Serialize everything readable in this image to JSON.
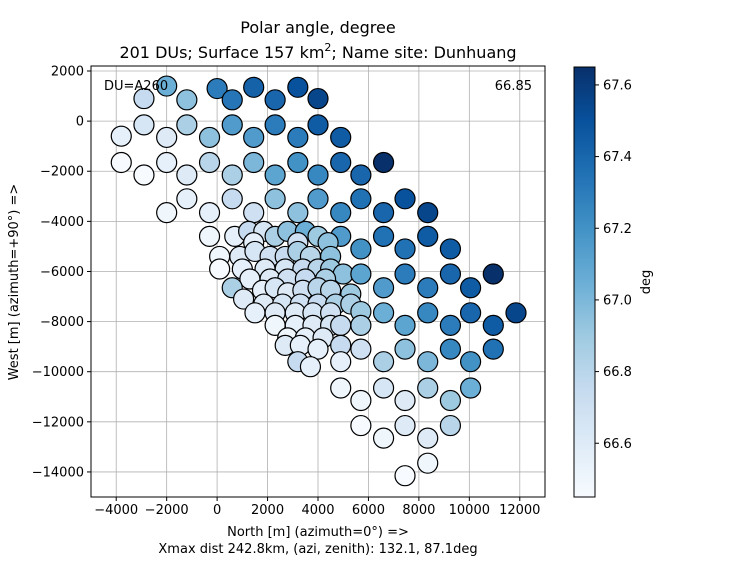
{
  "chart_data": {
    "type": "scatter",
    "title_line1": "Polar angle, degree",
    "title_line2_prefix": "201 DUs; Surface 157 km",
    "title_line2_sup": "2",
    "title_line2_suffix": "; Name site: Dunhuang",
    "xlabel": "North [m]  (azimuth=0°) =>",
    "xlabel2": "Xmax dist 242.8km, (azi, zenith): 132.1, 87.1deg",
    "ylabel": "West [m]  (azimuth=+90°) =>",
    "xlim": [
      -5000,
      13000
    ],
    "ylim": [
      -15000,
      2200
    ],
    "x_ticks": [
      -4000,
      -2000,
      0,
      2000,
      4000,
      6000,
      8000,
      10000,
      12000
    ],
    "x_tick_labels": [
      "−4000",
      "−2000",
      "0",
      "2000",
      "4000",
      "6000",
      "8000",
      "10000",
      "12000"
    ],
    "y_ticks": [
      2000,
      0,
      -2000,
      -4000,
      -6000,
      -8000,
      -10000,
      -12000,
      -14000
    ],
    "y_tick_labels": [
      "2000",
      "0",
      "−2000",
      "−4000",
      "−6000",
      "−8000",
      "−10000",
      "−12000",
      "−14000"
    ],
    "grid": true,
    "annotation_left": "DU=A260",
    "annotation_right": "66.85",
    "colorbar": {
      "label": "deg",
      "min": 66.45,
      "max": 67.65,
      "ticks": [
        66.6,
        66.8,
        67.0,
        67.2,
        67.4,
        67.6
      ],
      "tick_labels": [
        "66.6",
        "66.8",
        "67.0",
        "67.2",
        "67.4",
        "67.6"
      ],
      "colormap": "Blues",
      "stops": [
        "#f7fbff",
        "#deebf7",
        "#c6dbef",
        "#9ecae1",
        "#6baed6",
        "#4292c6",
        "#2171b5",
        "#08519c",
        "#08306b"
      ]
    },
    "points": [
      {
        "x": -2000,
        "y": 1400,
        "v": 67.05
      },
      {
        "x": 0,
        "y": 1300,
        "v": 67.3
      },
      {
        "x": 1450,
        "y": 1350,
        "v": 67.42
      },
      {
        "x": 3200,
        "y": 1350,
        "v": 67.5
      },
      {
        "x": -2900,
        "y": 900,
        "v": 66.75
      },
      {
        "x": -1200,
        "y": 850,
        "v": 66.95
      },
      {
        "x": 600,
        "y": 850,
        "v": 67.33
      },
      {
        "x": 2300,
        "y": 850,
        "v": 67.4
      },
      {
        "x": 4000,
        "y": 900,
        "v": 67.55
      },
      {
        "x": -2900,
        "y": -150,
        "v": 66.65
      },
      {
        "x": -1200,
        "y": -150,
        "v": 66.85
      },
      {
        "x": 600,
        "y": -150,
        "v": 67.15
      },
      {
        "x": 2300,
        "y": -150,
        "v": 67.3
      },
      {
        "x": 4000,
        "y": -150,
        "v": 67.45
      },
      {
        "x": -3800,
        "y": -600,
        "v": 66.55
      },
      {
        "x": -2000,
        "y": -650,
        "v": 66.6
      },
      {
        "x": -300,
        "y": -650,
        "v": 66.95
      },
      {
        "x": 1450,
        "y": -650,
        "v": 67.15
      },
      {
        "x": 3200,
        "y": -650,
        "v": 67.3
      },
      {
        "x": 4900,
        "y": -650,
        "v": 67.45
      },
      {
        "x": -3800,
        "y": -1650,
        "v": 66.45
      },
      {
        "x": -2000,
        "y": -1650,
        "v": 66.55
      },
      {
        "x": -300,
        "y": -1650,
        "v": 66.8
      },
      {
        "x": 1450,
        "y": -1650,
        "v": 67.0
      },
      {
        "x": 3200,
        "y": -1650,
        "v": 67.2
      },
      {
        "x": 4900,
        "y": -1650,
        "v": 67.4
      },
      {
        "x": 6600,
        "y": -1650,
        "v": 67.65
      },
      {
        "x": -2900,
        "y": -2150,
        "v": 66.45
      },
      {
        "x": -1200,
        "y": -2150,
        "v": 66.6
      },
      {
        "x": 600,
        "y": -2150,
        "v": 66.85
      },
      {
        "x": 2300,
        "y": -2150,
        "v": 67.1
      },
      {
        "x": 4000,
        "y": -2150,
        "v": 67.25
      },
      {
        "x": 5700,
        "y": -2150,
        "v": 67.4
      },
      {
        "x": -1200,
        "y": -3100,
        "v": 66.55
      },
      {
        "x": 600,
        "y": -3100,
        "v": 66.75
      },
      {
        "x": 2300,
        "y": -3100,
        "v": 66.95
      },
      {
        "x": 4000,
        "y": -3100,
        "v": 67.15
      },
      {
        "x": 5700,
        "y": -3100,
        "v": 67.35
      },
      {
        "x": 7450,
        "y": -3100,
        "v": 67.5
      },
      {
        "x": -2000,
        "y": -3650,
        "v": 66.5
      },
      {
        "x": -300,
        "y": -3650,
        "v": 66.55
      },
      {
        "x": 1450,
        "y": -3650,
        "v": 66.7
      },
      {
        "x": 3200,
        "y": -3650,
        "v": 66.95
      },
      {
        "x": 4900,
        "y": -3650,
        "v": 67.25
      },
      {
        "x": 6600,
        "y": -3650,
        "v": 67.4
      },
      {
        "x": 8350,
        "y": -3650,
        "v": 67.55
      },
      {
        "x": -300,
        "y": -4600,
        "v": 66.5
      },
      {
        "x": 700,
        "y": -4600,
        "v": 66.55
      },
      {
        "x": 1250,
        "y": -4400,
        "v": 66.75
      },
      {
        "x": 1850,
        "y": -4400,
        "v": 66.65
      },
      {
        "x": 2300,
        "y": -4600,
        "v": 66.85
      },
      {
        "x": 2800,
        "y": -4400,
        "v": 66.95
      },
      {
        "x": 3500,
        "y": -4400,
        "v": 67.05
      },
      {
        "x": 4000,
        "y": -4600,
        "v": 66.9
      },
      {
        "x": 4900,
        "y": -4600,
        "v": 67.15
      },
      {
        "x": 6600,
        "y": -4600,
        "v": 67.35
      },
      {
        "x": 8350,
        "y": -4600,
        "v": 67.45
      },
      {
        "x": 1450,
        "y": -4850,
        "v": 66.55
      },
      {
        "x": 3200,
        "y": -4850,
        "v": 66.7
      },
      {
        "x": 4400,
        "y": -4850,
        "v": 66.95
      },
      {
        "x": 100,
        "y": -5400,
        "v": 66.5
      },
      {
        "x": 900,
        "y": -5400,
        "v": 66.6
      },
      {
        "x": 1500,
        "y": -5200,
        "v": 66.65
      },
      {
        "x": 2100,
        "y": -5400,
        "v": 66.7
      },
      {
        "x": 2700,
        "y": -5400,
        "v": 66.75
      },
      {
        "x": 3200,
        "y": -5200,
        "v": 66.85
      },
      {
        "x": 3700,
        "y": -5400,
        "v": 66.8
      },
      {
        "x": 4500,
        "y": -5400,
        "v": 66.95
      },
      {
        "x": 5700,
        "y": -5100,
        "v": 67.2
      },
      {
        "x": 7450,
        "y": -5100,
        "v": 67.35
      },
      {
        "x": 9250,
        "y": -5100,
        "v": 67.45
      },
      {
        "x": 100,
        "y": -5900,
        "v": 66.45
      },
      {
        "x": 1000,
        "y": -5900,
        "v": 66.55
      },
      {
        "x": 1900,
        "y": -5900,
        "v": 66.6
      },
      {
        "x": 2700,
        "y": -5900,
        "v": 66.65
      },
      {
        "x": 3400,
        "y": -5900,
        "v": 66.75
      },
      {
        "x": 4000,
        "y": -5900,
        "v": 66.8
      },
      {
        "x": 4500,
        "y": -5900,
        "v": 66.9
      },
      {
        "x": 5000,
        "y": -6100,
        "v": 66.95
      },
      {
        "x": 5700,
        "y": -6100,
        "v": 67.1
      },
      {
        "x": 7450,
        "y": -6100,
        "v": 67.3
      },
      {
        "x": 9250,
        "y": -6100,
        "v": 67.4
      },
      {
        "x": 10950,
        "y": -6100,
        "v": 67.65
      },
      {
        "x": 1300,
        "y": -6300,
        "v": 66.55
      },
      {
        "x": 2100,
        "y": -6300,
        "v": 66.6
      },
      {
        "x": 2800,
        "y": -6300,
        "v": 66.7
      },
      {
        "x": 3500,
        "y": -6300,
        "v": 66.75
      },
      {
        "x": 4300,
        "y": -6300,
        "v": 66.85
      },
      {
        "x": 600,
        "y": -6650,
        "v": 66.85
      },
      {
        "x": 1800,
        "y": -6750,
        "v": 66.55
      },
      {
        "x": 2300,
        "y": -6650,
        "v": 66.65
      },
      {
        "x": 2800,
        "y": -6850,
        "v": 66.6
      },
      {
        "x": 3400,
        "y": -6750,
        "v": 66.7
      },
      {
        "x": 4000,
        "y": -6650,
        "v": 66.8
      },
      {
        "x": 4500,
        "y": -6750,
        "v": 66.8
      },
      {
        "x": 5300,
        "y": -6900,
        "v": 66.9
      },
      {
        "x": 6600,
        "y": -6650,
        "v": 67.15
      },
      {
        "x": 8350,
        "y": -6650,
        "v": 67.3
      },
      {
        "x": 10050,
        "y": -6650,
        "v": 67.45
      },
      {
        "x": 1050,
        "y": -7100,
        "v": 66.6
      },
      {
        "x": 1850,
        "y": -7300,
        "v": 66.6
      },
      {
        "x": 2600,
        "y": -7300,
        "v": 66.65
      },
      {
        "x": 3300,
        "y": -7300,
        "v": 66.7
      },
      {
        "x": 4000,
        "y": -7300,
        "v": 66.75
      },
      {
        "x": 4700,
        "y": -7300,
        "v": 66.85
      },
      {
        "x": 5300,
        "y": -7300,
        "v": 66.85
      },
      {
        "x": 1500,
        "y": -7650,
        "v": 66.55
      },
      {
        "x": 2300,
        "y": -7650,
        "v": 66.6
      },
      {
        "x": 3100,
        "y": -7650,
        "v": 66.6
      },
      {
        "x": 3800,
        "y": -7650,
        "v": 66.65
      },
      {
        "x": 4500,
        "y": -7650,
        "v": 66.7
      },
      {
        "x": 5700,
        "y": -7600,
        "v": 66.9
      },
      {
        "x": 6600,
        "y": -7650,
        "v": 67.05
      },
      {
        "x": 8350,
        "y": -7650,
        "v": 67.25
      },
      {
        "x": 10050,
        "y": -7650,
        "v": 67.4
      },
      {
        "x": 11850,
        "y": -7650,
        "v": 67.55
      },
      {
        "x": 2300,
        "y": -8150,
        "v": 66.5
      },
      {
        "x": 3100,
        "y": -8150,
        "v": 66.55
      },
      {
        "x": 3800,
        "y": -8150,
        "v": 66.6
      },
      {
        "x": 4500,
        "y": -8150,
        "v": 66.65
      },
      {
        "x": 4900,
        "y": -8150,
        "v": 66.75
      },
      {
        "x": 5700,
        "y": -8150,
        "v": 66.85
      },
      {
        "x": 7450,
        "y": -8150,
        "v": 67.1
      },
      {
        "x": 9250,
        "y": -8150,
        "v": 67.3
      },
      {
        "x": 10950,
        "y": -8150,
        "v": 67.45
      },
      {
        "x": 2800,
        "y": -8650,
        "v": 66.5
      },
      {
        "x": 3500,
        "y": -8650,
        "v": 66.55
      },
      {
        "x": 4200,
        "y": -8650,
        "v": 66.6
      },
      {
        "x": 2700,
        "y": -8950,
        "v": 66.6
      },
      {
        "x": 3300,
        "y": -8950,
        "v": 66.55
      },
      {
        "x": 4000,
        "y": -9100,
        "v": 66.55
      },
      {
        "x": 4900,
        "y": -8950,
        "v": 66.75
      },
      {
        "x": 5700,
        "y": -9100,
        "v": 66.7
      },
      {
        "x": 7450,
        "y": -9100,
        "v": 66.95
      },
      {
        "x": 9250,
        "y": -9100,
        "v": 67.25
      },
      {
        "x": 10950,
        "y": -9100,
        "v": 67.35
      },
      {
        "x": 3200,
        "y": -9600,
        "v": 66.75
      },
      {
        "x": 3700,
        "y": -9800,
        "v": 66.55
      },
      {
        "x": 4900,
        "y": -9600,
        "v": 66.55
      },
      {
        "x": 6600,
        "y": -9600,
        "v": 66.85
      },
      {
        "x": 8350,
        "y": -9600,
        "v": 67.0
      },
      {
        "x": 10050,
        "y": -9600,
        "v": 67.2
      },
      {
        "x": 4900,
        "y": -10650,
        "v": 66.5
      },
      {
        "x": 6600,
        "y": -10650,
        "v": 66.65
      },
      {
        "x": 8350,
        "y": -10650,
        "v": 66.85
      },
      {
        "x": 10050,
        "y": -10650,
        "v": 67.05
      },
      {
        "x": 5700,
        "y": -11150,
        "v": 66.5
      },
      {
        "x": 7450,
        "y": -11150,
        "v": 66.6
      },
      {
        "x": 9250,
        "y": -11150,
        "v": 66.9
      },
      {
        "x": 5700,
        "y": -12150,
        "v": 66.45
      },
      {
        "x": 7450,
        "y": -12150,
        "v": 66.6
      },
      {
        "x": 9250,
        "y": -12150,
        "v": 66.8
      },
      {
        "x": 6600,
        "y": -12650,
        "v": 66.5
      },
      {
        "x": 8350,
        "y": -12650,
        "v": 66.6
      },
      {
        "x": 8350,
        "y": -13650,
        "v": 66.5
      },
      {
        "x": 7450,
        "y": -14150,
        "v": 66.45
      }
    ]
  }
}
